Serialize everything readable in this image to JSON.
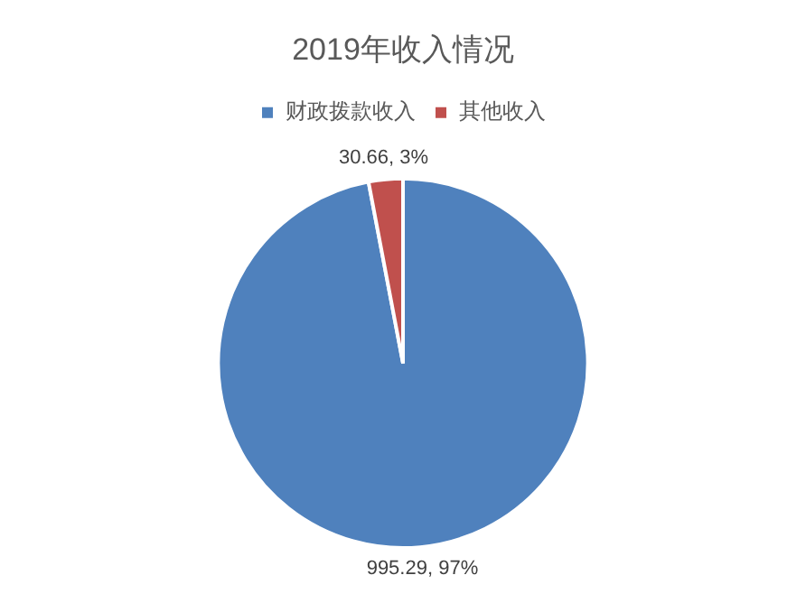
{
  "chart_data": {
    "type": "pie",
    "title": "2019年收入情况",
    "categories": [
      "财政拨款收入",
      "其他收入"
    ],
    "values": [
      995.29,
      30.66
    ],
    "colors": [
      "#4f81bd",
      "#c0504d"
    ],
    "value_labels": [
      "995.29, 97%",
      "30.66, 3%"
    ],
    "legend": "top"
  }
}
